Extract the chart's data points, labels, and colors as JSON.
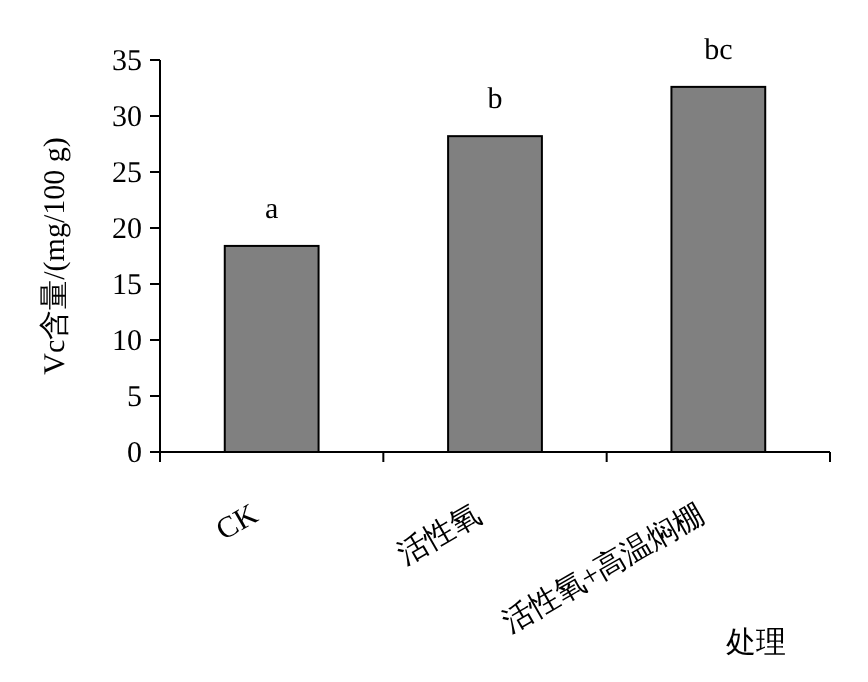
{
  "chart_data": {
    "type": "bar",
    "categories": [
      "CK",
      "活性氧",
      "活性氧+高温焖棚"
    ],
    "values": [
      18.4,
      28.2,
      32.6
    ],
    "color": "#808080",
    "ylim": [
      0,
      35
    ],
    "yticks": [
      0,
      5,
      10,
      15,
      20,
      25,
      30,
      35
    ],
    "ylabel": "Vc含量/(mg/100 g)",
    "xlabel": "处理",
    "grid": false,
    "annotations": [
      {
        "text": "a",
        "x": "CK",
        "y": 18.4
      },
      {
        "text": "b",
        "x": "活性氧",
        "y": 28.2
      },
      {
        "text": "bc",
        "x": "活性氧+高温焖棚",
        "y": 32.6
      }
    ]
  }
}
